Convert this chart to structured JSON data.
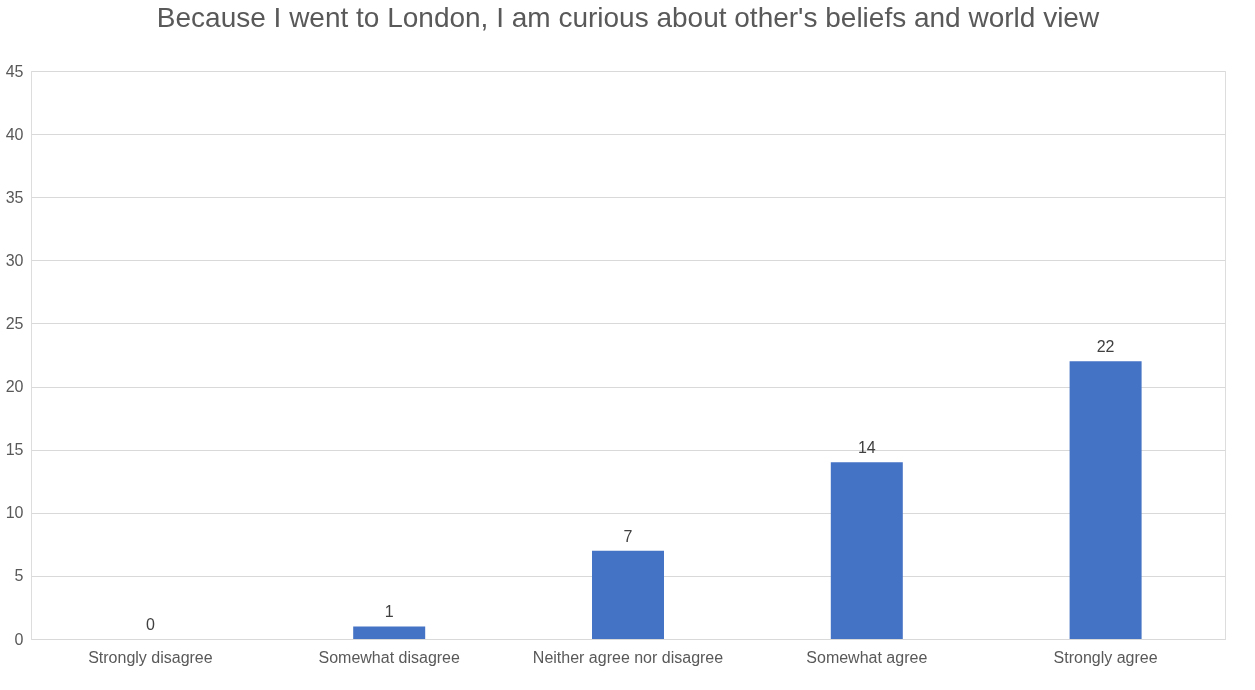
{
  "chart_data": {
    "type": "bar",
    "title": "Because I went to London, I am curious about other's beliefs and world view",
    "categories": [
      "Strongly disagree",
      "Somewhat disagree",
      "Neither agree nor disagree",
      "Somewhat agree",
      "Strongly agree"
    ],
    "values": [
      0,
      1,
      7,
      14,
      22
    ],
    "color": "#4472c4",
    "ylim": [
      0,
      45
    ],
    "yticks": [
      0,
      5,
      10,
      15,
      20,
      25,
      30,
      35,
      40,
      45
    ],
    "grid": "y",
    "data_labels": true
  }
}
